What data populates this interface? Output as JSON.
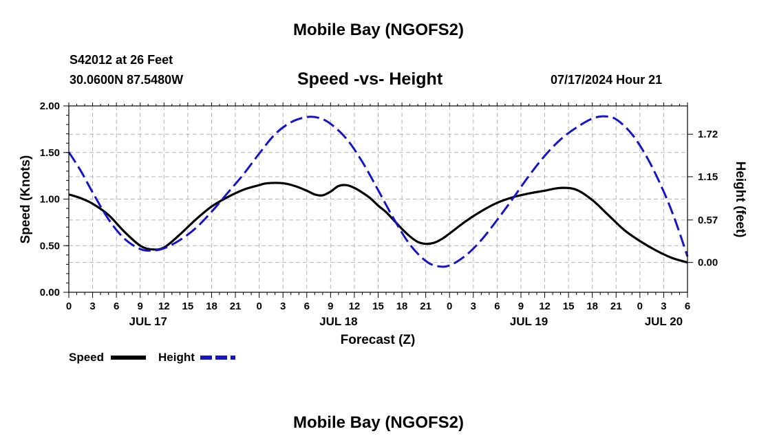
{
  "header": {
    "title": "Mobile Bay (NGOFS2)",
    "station": "S42012 at 26 Feet",
    "coords": "30.0600N  87.5480W",
    "chart_title": "Speed -vs- Height",
    "timestamp": "07/17/2024 Hour 21"
  },
  "footer": {
    "title": "Mobile Bay (NGOFS2)"
  },
  "legend": {
    "speed_label": "Speed",
    "height_label": "Height"
  },
  "colors": {
    "speed": "#000000",
    "height": "#1414c8",
    "grid": "#b4b4b4"
  },
  "chart_data": {
    "type": "line",
    "title": "Speed -vs- Height",
    "xlabel": "Forecast (Z)",
    "ylabel_left": "Speed (Knots)",
    "ylabel_right": "Height (feet)",
    "x_unit": "hours since 2024-07-17 00Z",
    "xlim": [
      0,
      78
    ],
    "ylim_left": [
      0,
      2.0
    ],
    "ylim_right": [
      -0.4,
      2.1
    ],
    "x_ticks": [
      0,
      3,
      6,
      9,
      12,
      15,
      18,
      21,
      24,
      27,
      30,
      33,
      36,
      39,
      42,
      45,
      48,
      51,
      54,
      57,
      60,
      63,
      66,
      69,
      72,
      75,
      78
    ],
    "x_tick_labels": [
      "0",
      "3",
      "6",
      "9",
      "12",
      "15",
      "18",
      "21",
      "0",
      "3",
      "6",
      "9",
      "12",
      "15",
      "18",
      "21",
      "0",
      "3",
      "6",
      "9",
      "12",
      "15",
      "18",
      "21",
      "0",
      "3",
      "6"
    ],
    "left_ticks": [
      0,
      0.5,
      1.0,
      1.5,
      2.0
    ],
    "left_tick_labels": [
      "0.00",
      "0.50",
      "1.00",
      "1.50",
      "2.00"
    ],
    "right_ticks": [
      0,
      0.57,
      1.15,
      1.72
    ],
    "right_tick_labels": [
      "0.00",
      "0.57",
      "1.15",
      "1.72"
    ],
    "date_labels": [
      {
        "x": 10,
        "label": "JUL 17"
      },
      {
        "x": 34,
        "label": "JUL 18"
      },
      {
        "x": 58,
        "label": "JUL 19"
      },
      {
        "x": 75,
        "label": "JUL 20"
      }
    ],
    "series": [
      {
        "name": "Speed",
        "axis": "left",
        "style": "solid",
        "x": [
          0,
          1.5,
          3,
          5,
          7,
          9,
          10.5,
          12,
          14,
          16,
          18,
          20,
          22,
          24,
          25,
          27,
          28.5,
          30,
          31,
          32,
          33,
          34,
          35,
          36,
          37,
          38,
          39,
          40,
          41,
          42,
          43,
          44,
          45,
          46,
          47,
          48,
          50,
          52,
          54,
          56,
          58,
          60,
          62,
          64,
          66,
          68,
          70,
          72,
          74,
          76,
          78
        ],
        "values": [
          1.05,
          1.01,
          0.95,
          0.83,
          0.65,
          0.5,
          0.46,
          0.48,
          0.62,
          0.78,
          0.92,
          1.02,
          1.1,
          1.15,
          1.17,
          1.17,
          1.14,
          1.09,
          1.05,
          1.04,
          1.08,
          1.14,
          1.15,
          1.12,
          1.07,
          1.01,
          0.93,
          0.86,
          0.77,
          0.68,
          0.6,
          0.54,
          0.52,
          0.53,
          0.57,
          0.63,
          0.76,
          0.87,
          0.96,
          1.02,
          1.06,
          1.09,
          1.12,
          1.1,
          0.99,
          0.83,
          0.67,
          0.55,
          0.45,
          0.37,
          0.32
        ]
      },
      {
        "name": "Height",
        "axis": "right",
        "style": "dashed",
        "x": [
          0,
          1.5,
          3,
          5,
          7,
          9,
          10.5,
          12,
          14,
          16,
          18,
          20,
          22,
          24,
          26,
          28,
          30,
          31.5,
          33,
          35,
          37,
          39,
          41,
          43,
          45,
          46.5,
          48,
          50,
          52,
          54,
          56,
          58,
          60,
          62,
          64,
          66,
          67.5,
          69,
          71,
          73,
          75,
          76.5,
          78
        ],
        "values": [
          1.48,
          1.23,
          0.94,
          0.58,
          0.32,
          0.18,
          0.16,
          0.19,
          0.3,
          0.46,
          0.68,
          0.93,
          1.18,
          1.46,
          1.72,
          1.88,
          1.95,
          1.94,
          1.86,
          1.66,
          1.35,
          0.97,
          0.58,
          0.24,
          0.02,
          -0.05,
          -0.04,
          0.09,
          0.3,
          0.57,
          0.86,
          1.16,
          1.43,
          1.65,
          1.81,
          1.93,
          1.96,
          1.92,
          1.72,
          1.39,
          0.95,
          0.55,
          0.08
        ]
      }
    ]
  }
}
